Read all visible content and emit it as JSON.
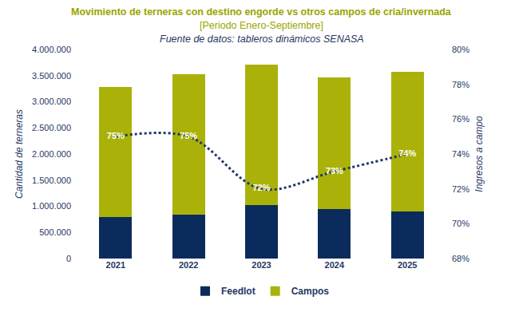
{
  "chart_data": {
    "type": "bar",
    "title": "Movimiento de terneras con destino engorde vs otros campos de cria/invernada",
    "subtitle": "[Periodo Enero-Septiembre]",
    "source": "Fuente de datos: tableros dinámicos SENASA",
    "ylabel": "Cantidad de terneras",
    "y2label": "Ingresos a campo",
    "categories": [
      "2021",
      "2022",
      "2023",
      "2024",
      "2025"
    ],
    "stacked": true,
    "grid": false,
    "legend": "bottom",
    "ylim": [
      0,
      4000000
    ],
    "yticks": [
      0,
      {
        "value": 500000,
        "label": "500.000"
      },
      {
        "value": 1000000,
        "label": "1.000.000"
      },
      {
        "value": 1500000,
        "label": "1.500.000"
      },
      {
        "value": 2000000,
        "label": "2.000.000"
      },
      {
        "value": 2500000,
        "label": "2.500.000"
      },
      {
        "value": 3000000,
        "label": "3.000.000"
      },
      {
        "value": 3500000,
        "label": "3.500.000"
      },
      {
        "value": 4000000,
        "label": "4.000.000"
      }
    ],
    "y2lim": [
      68,
      80
    ],
    "y2ticks": [
      {
        "value": 68,
        "label": "68%"
      },
      {
        "value": 70,
        "label": "70%"
      },
      {
        "value": 72,
        "label": "72%"
      },
      {
        "value": 74,
        "label": "74%"
      },
      {
        "value": 76,
        "label": "76%"
      },
      {
        "value": 78,
        "label": "78%"
      },
      {
        "value": 80,
        "label": "80%"
      }
    ],
    "series": [
      {
        "name": "Feedlot",
        "type": "bar",
        "color": "#0b2b5c",
        "values": [
          790000,
          840000,
          1030000,
          950000,
          900000
        ]
      },
      {
        "name": "Campos",
        "type": "bar",
        "color": "#aab20a",
        "values": [
          2490000,
          2680000,
          2680000,
          2510000,
          2670000
        ]
      },
      {
        "type": "line",
        "axis": "y2",
        "color": "#1f3864",
        "line_style": "dotted",
        "data_labels": true,
        "values": [
          75,
          75,
          72,
          73,
          74
        ],
        "value_labels": [
          "75%",
          "75%",
          "72%",
          "73%",
          "74%"
        ]
      }
    ]
  }
}
